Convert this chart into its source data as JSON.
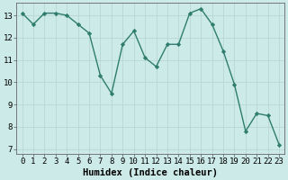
{
  "x": [
    0,
    1,
    2,
    3,
    4,
    5,
    6,
    7,
    8,
    9,
    10,
    11,
    12,
    13,
    14,
    15,
    16,
    17,
    18,
    19,
    20,
    21,
    22,
    23
  ],
  "y": [
    13.1,
    12.6,
    13.1,
    13.1,
    13.0,
    12.6,
    12.2,
    10.3,
    9.5,
    11.7,
    12.3,
    11.1,
    10.7,
    11.7,
    11.7,
    13.1,
    13.3,
    12.6,
    11.4,
    9.9,
    7.8,
    8.6,
    8.5,
    7.2
  ],
  "line_color": "#2e7d6e",
  "marker": "D",
  "marker_size": 2.2,
  "line_width": 1.0,
  "bg_color": "#cceae7",
  "grid_color": "#b8d8d5",
  "xlabel": "Humidex (Indice chaleur)",
  "xlabel_fontsize": 7.5,
  "tick_fontsize": 6.5,
  "ylim": [
    6.8,
    13.55
  ],
  "xlim": [
    -0.5,
    23.5
  ],
  "yticks": [
    7,
    8,
    9,
    10,
    11,
    12,
    13
  ],
  "xticks": [
    0,
    1,
    2,
    3,
    4,
    5,
    6,
    7,
    8,
    9,
    10,
    11,
    12,
    13,
    14,
    15,
    16,
    17,
    18,
    19,
    20,
    21,
    22,
    23
  ]
}
